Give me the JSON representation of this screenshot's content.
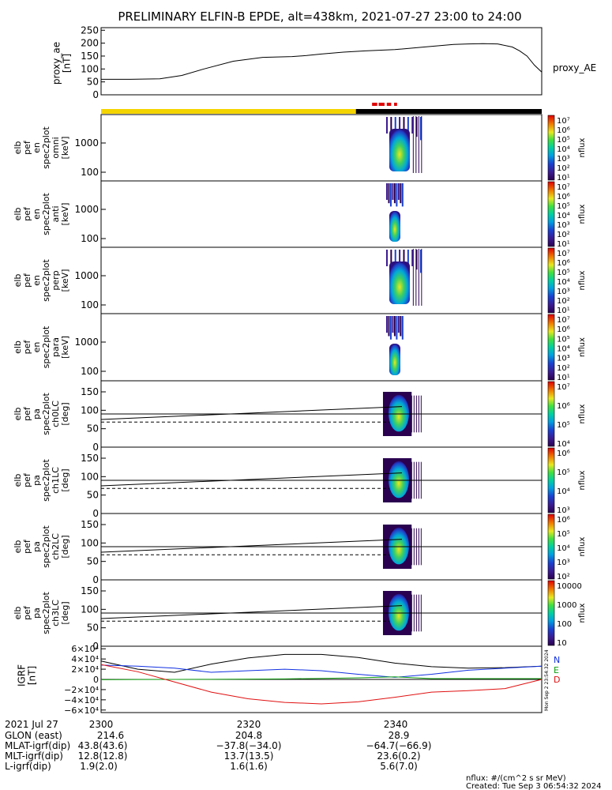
{
  "title": "PRELIMINARY ELFIN-B EPDE, alt=438km, 2021-07-27 23:00 to 24:00",
  "colors": {
    "science_bar": "#f4d400",
    "dark_bar": "#000000",
    "red_marks": "#e00000",
    "bx": "#1030e0",
    "by": "#10a010",
    "bz": "#e01010",
    "bt": "#000000"
  },
  "chart_data": [
    {
      "type": "line",
      "id": "proxy_ae",
      "ylabel": [
        "proxy_ae",
        "[nT]"
      ],
      "legend": "proxy_AE",
      "ylim": [
        0,
        260
      ],
      "yticks": [
        "250",
        "200",
        "150",
        "100",
        "50",
        "0"
      ],
      "ytick_values": [
        250,
        200,
        150,
        100,
        50,
        0
      ],
      "x_minutes": [
        0,
        4,
        8,
        11,
        14,
        18,
        22,
        26,
        28,
        30,
        33,
        36,
        40,
        44,
        48,
        50,
        52,
        54,
        56,
        57,
        58,
        59,
        60
      ],
      "values": [
        60,
        60,
        62,
        75,
        100,
        130,
        145,
        148,
        152,
        158,
        165,
        170,
        175,
        185,
        195,
        197,
        198,
        197,
        185,
        170,
        150,
        115,
        88
      ]
    },
    {
      "type": "heatmap",
      "id": "omni",
      "ylabel": [
        "elb",
        "pef",
        "en",
        "spec2plot",
        "omni",
        "[keV]"
      ],
      "yticks": [
        "1000",
        "100"
      ],
      "cbar_label": "nflux",
      "cbar_ticks": [
        "10⁷",
        "10⁶",
        "10⁵",
        "10⁴",
        "10³",
        "10²",
        "10¹"
      ],
      "active_minutes": [
        38.6,
        43.8
      ]
    },
    {
      "type": "heatmap",
      "id": "anti",
      "ylabel": [
        "elb",
        "pef",
        "en",
        "spec2plot",
        "anti",
        "[keV]"
      ],
      "yticks": [
        "1000",
        "100"
      ],
      "cbar_label": "nflux",
      "cbar_ticks": [
        "10⁷",
        "10⁶",
        "10⁵",
        "10⁴",
        "10³",
        "10²",
        "10¹"
      ],
      "active_minutes": [
        38.6,
        41.0
      ]
    },
    {
      "type": "heatmap",
      "id": "perp",
      "ylabel": [
        "elb",
        "pef",
        "en",
        "spec2plot",
        "perp",
        "[keV]"
      ],
      "yticks": [
        "1000",
        "100"
      ],
      "cbar_label": "nflux",
      "cbar_ticks": [
        "10⁷",
        "10⁶",
        "10⁵",
        "10⁴",
        "10³",
        "10²",
        "10¹"
      ],
      "active_minutes": [
        38.6,
        43.8
      ]
    },
    {
      "type": "heatmap",
      "id": "para",
      "ylabel": [
        "elb",
        "pef",
        "en",
        "spec2plot",
        "para",
        "[keV]"
      ],
      "yticks": [
        "1000",
        "100"
      ],
      "cbar_label": "nflux",
      "cbar_ticks": [
        "10⁷",
        "10⁶",
        "10⁵",
        "10⁴",
        "10³",
        "10²",
        "10¹"
      ],
      "active_minutes": [
        38.6,
        41.0
      ]
    },
    {
      "type": "heatmap",
      "id": "ch0LC",
      "ylabel": [
        "elb",
        "pef",
        "pa",
        "spec2plot",
        "ch0LC",
        "[deg]"
      ],
      "yticks": [
        "150",
        "100",
        "50",
        "0"
      ],
      "ylim": [
        0,
        180
      ],
      "cbar_label": "nflux",
      "cbar_ticks": [
        "10⁷",
        "10⁶",
        "10⁵",
        "10⁴"
      ],
      "active_minutes": [
        38.6,
        43.8
      ],
      "lc_start": 75,
      "lc_end": 110,
      "alc_start": 68,
      "alc_end": 68,
      "hline": 90
    },
    {
      "type": "heatmap",
      "id": "ch1LC",
      "ylabel": [
        "elb",
        "pef",
        "pa",
        "spec2plot",
        "ch1LC",
        "[deg]"
      ],
      "yticks": [
        "150",
        "100",
        "50",
        "0"
      ],
      "ylim": [
        0,
        180
      ],
      "cbar_label": "nflux",
      "cbar_ticks": [
        "10⁶",
        "10⁵",
        "10⁴",
        "10³"
      ],
      "active_minutes": [
        38.6,
        43.8
      ],
      "lc_start": 75,
      "lc_end": 110,
      "alc_start": 68,
      "alc_end": 68,
      "hline": 90
    },
    {
      "type": "heatmap",
      "id": "ch2LC",
      "ylabel": [
        "elb",
        "pef",
        "pa",
        "spec2plot",
        "ch2LC",
        "[deg]"
      ],
      "yticks": [
        "150",
        "100",
        "50",
        "0"
      ],
      "ylim": [
        0,
        180
      ],
      "cbar_label": "nflux",
      "cbar_ticks": [
        "10⁶",
        "10⁵",
        "10⁴",
        "10³",
        "10²"
      ],
      "active_minutes": [
        38.6,
        43.8
      ],
      "lc_start": 75,
      "lc_end": 110,
      "alc_start": 68,
      "alc_end": 68,
      "hline": 90
    },
    {
      "type": "heatmap",
      "id": "ch3LC",
      "ylabel": [
        "elb",
        "pef",
        "pa",
        "spec2plot",
        "ch3LC",
        "[deg]"
      ],
      "yticks": [
        "150",
        "100",
        "50",
        "0"
      ],
      "ylim": [
        0,
        180
      ],
      "cbar_label": "nflux",
      "cbar_ticks": [
        "10000",
        "1000",
        "100",
        "10"
      ],
      "active_minutes": [
        38.6,
        43.8
      ],
      "lc_start": 75,
      "lc_end": 110,
      "alc_start": 68,
      "alc_end": 68,
      "hline": 90
    },
    {
      "type": "line",
      "id": "igrf",
      "ylabel": [
        "IGRF",
        "[nT]"
      ],
      "ylim": [
        -65000,
        65000
      ],
      "yticks": [
        "6×10⁴",
        "4×10⁴",
        "2×10⁴",
        "0",
        "−2×10⁴",
        "−4×10⁴",
        "−6×10⁴"
      ],
      "ytick_values": [
        60000,
        40000,
        20000,
        0,
        -20000,
        -40000,
        -60000
      ],
      "legend": [
        "N",
        "E",
        "D"
      ],
      "stamp": "Mon Sep  2 23:54:32 2024",
      "x_minutes": [
        0,
        5,
        10,
        15,
        20,
        25,
        30,
        35,
        40,
        45,
        50,
        55,
        60
      ],
      "series": [
        {
          "name": "bt",
          "values": [
            36000,
            20000,
            14000,
            30000,
            42000,
            49000,
            49000,
            43000,
            32000,
            25000,
            22000,
            23000,
            26000
          ]
        },
        {
          "name": "bx",
          "values": [
            28000,
            26000,
            22000,
            14000,
            17000,
            20000,
            17000,
            10000,
            4000,
            10000,
            18000,
            22000,
            26000
          ]
        },
        {
          "name": "by",
          "values": [
            -500,
            -200,
            0,
            200,
            500,
            1000,
            2000,
            3000,
            5000,
            1500,
            1500,
            1500,
            1500
          ]
        },
        {
          "name": "bz",
          "values": [
            29000,
            15000,
            -5000,
            -25000,
            -38000,
            -45000,
            -48000,
            -44000,
            -35000,
            -25000,
            -22000,
            -18000,
            0
          ]
        }
      ]
    }
  ],
  "xaxis": {
    "date_label": "2021 Jul 27",
    "ticks": [
      "2300",
      "2320",
      "2340"
    ],
    "rows": [
      {
        "label": "GLON (east)",
        "v1": "214.6",
        "v2": "204.8",
        "v3": "28.9"
      },
      {
        "label": "MLAT-igrf(dip)",
        "v1": "43.8(43.6)",
        "v2": "−37.8(−34.0)",
        "v3": "−64.7(−66.9)"
      },
      {
        "label": "MLT-igrf(dip)",
        "v1": "12.8(12.8)",
        "v2": "13.7(13.5)",
        "v3": "23.6(0.2)"
      },
      {
        "label": "L-igrf(dip)",
        "v1": "1.9(2.0)",
        "v2": "1.6(1.6)",
        "v3": "5.6(7.0)"
      }
    ]
  },
  "footer": {
    "units": "nflux: #/(cm^2 s sr MeV)",
    "created": "Created: Tue Sep  3 06:54:32 2024"
  }
}
